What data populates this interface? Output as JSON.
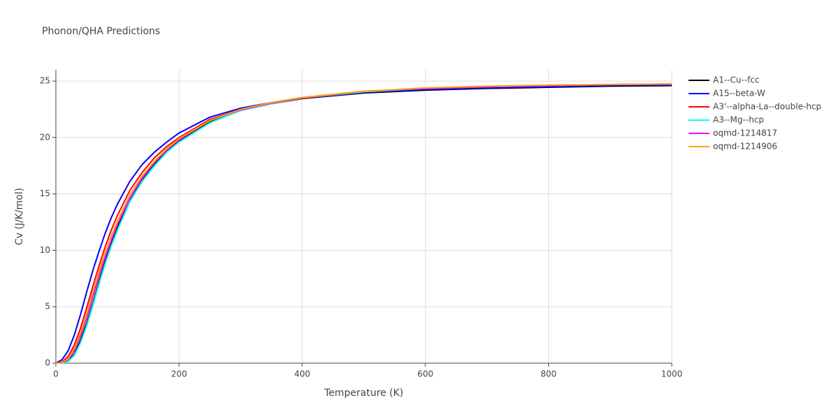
{
  "chart_data": {
    "type": "line",
    "title": "Phonon/QHA Predictions",
    "x_label": "Temperature (K)",
    "y_label": "Cv (J/K/mol)",
    "x": [
      0,
      10,
      20,
      30,
      40,
      50,
      60,
      70,
      80,
      90,
      100,
      120,
      140,
      160,
      180,
      200,
      250,
      300,
      350,
      400,
      500,
      600,
      700,
      800,
      900,
      1000
    ],
    "xlim": [
      0,
      1000
    ],
    "xticks": [
      0,
      200,
      400,
      600,
      800,
      1000
    ],
    "ylim": [
      0,
      26
    ],
    "yticks": [
      0,
      5,
      10,
      15,
      20,
      25
    ],
    "grid": true,
    "legend": "right",
    "series": [
      {
        "name": "A1--Cu--fcc",
        "color": "#000000",
        "values": [
          0,
          0.02,
          0.2,
          0.8,
          2.0,
          3.5,
          5.3,
          7.2,
          9.0,
          10.6,
          12.0,
          14.4,
          16.2,
          17.6,
          18.8,
          19.7,
          21.4,
          22.4,
          23.0,
          23.45,
          23.95,
          24.2,
          24.35,
          24.45,
          24.55,
          24.6
        ]
      },
      {
        "name": "A15--beta-W",
        "color": "#0000ff",
        "values": [
          0,
          0.3,
          1.1,
          2.5,
          4.3,
          6.3,
          8.2,
          9.9,
          11.5,
          12.9,
          14.1,
          16.1,
          17.6,
          18.7,
          19.6,
          20.4,
          21.8,
          22.6,
          23.1,
          23.5,
          24.0,
          24.25,
          24.4,
          24.5,
          24.6,
          24.65
        ]
      },
      {
        "name": "A3'--alpha-La--double-hcp",
        "color": "#ff0000",
        "values": [
          0,
          0.1,
          0.6,
          1.6,
          3.1,
          4.9,
          6.8,
          8.6,
          10.3,
          11.8,
          13.1,
          15.3,
          16.9,
          18.2,
          19.2,
          20.0,
          21.6,
          22.5,
          23.1,
          23.55,
          24.1,
          24.35,
          24.5,
          24.6,
          24.7,
          24.75
        ]
      },
      {
        "name": "A3--Mg--hcp",
        "color": "#00ffff",
        "values": [
          0,
          0.01,
          0.15,
          0.7,
          1.8,
          3.3,
          5.1,
          7.0,
          8.8,
          10.4,
          11.8,
          14.3,
          16.1,
          17.5,
          18.7,
          19.6,
          21.3,
          22.4,
          23.0,
          23.5,
          24.05,
          24.35,
          24.5,
          24.6,
          24.7,
          24.75
        ]
      },
      {
        "name": "oqmd-1214817",
        "color": "#ff00ff",
        "values": [
          0,
          0.03,
          0.3,
          1.1,
          2.4,
          4.0,
          5.9,
          7.7,
          9.4,
          10.9,
          12.3,
          14.6,
          16.4,
          17.8,
          18.9,
          19.8,
          21.5,
          22.45,
          23.05,
          23.5,
          24.1,
          24.35,
          24.5,
          24.6,
          24.7,
          24.75
        ]
      },
      {
        "name": "oqmd-1214906",
        "color": "#ffa500",
        "values": [
          0,
          0.05,
          0.4,
          1.3,
          2.7,
          4.4,
          6.3,
          8.1,
          9.8,
          11.3,
          12.6,
          14.9,
          16.6,
          17.9,
          19.0,
          19.9,
          21.5,
          22.5,
          23.1,
          23.55,
          24.1,
          24.4,
          24.55,
          24.65,
          24.7,
          24.75
        ]
      }
    ]
  }
}
